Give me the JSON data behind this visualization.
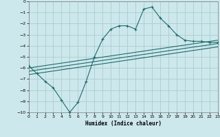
{
  "xlabel": "Humidex (Indice chaleur)",
  "ylabel": "",
  "bg_color": "#cde8ec",
  "grid_color": "#aacccc",
  "line_color": "#1a6b6b",
  "xlim": [
    0,
    23
  ],
  "ylim": [
    -10,
    0
  ],
  "xticks": [
    0,
    1,
    2,
    3,
    4,
    5,
    6,
    7,
    8,
    9,
    10,
    11,
    12,
    13,
    14,
    15,
    16,
    17,
    18,
    19,
    20,
    21,
    22,
    23
  ],
  "yticks": [
    0,
    -1,
    -2,
    -3,
    -4,
    -5,
    -6,
    -7,
    -8,
    -9,
    -10
  ],
  "line1_x": [
    0,
    1,
    2,
    3,
    4,
    5,
    6,
    7,
    8,
    9,
    10,
    11,
    12,
    13,
    14,
    15,
    16,
    17,
    18,
    19,
    20,
    21,
    22,
    23
  ],
  "line1_y": [
    -5.8,
    -6.5,
    -7.2,
    -7.8,
    -8.9,
    -10.0,
    -9.1,
    -7.2,
    -5.0,
    -3.4,
    -2.5,
    -2.2,
    -2.2,
    -2.5,
    -0.7,
    -0.5,
    -1.5,
    -2.2,
    -3.0,
    -3.5,
    -3.6,
    -3.6,
    -3.7,
    -3.7
  ],
  "line2_x": [
    0,
    23
  ],
  "line2_y": [
    -6.0,
    -3.5
  ],
  "line3_x": [
    0,
    23
  ],
  "line3_y": [
    -6.3,
    -3.8
  ],
  "line4_x": [
    0,
    23
  ],
  "line4_y": [
    -6.6,
    -4.1
  ]
}
